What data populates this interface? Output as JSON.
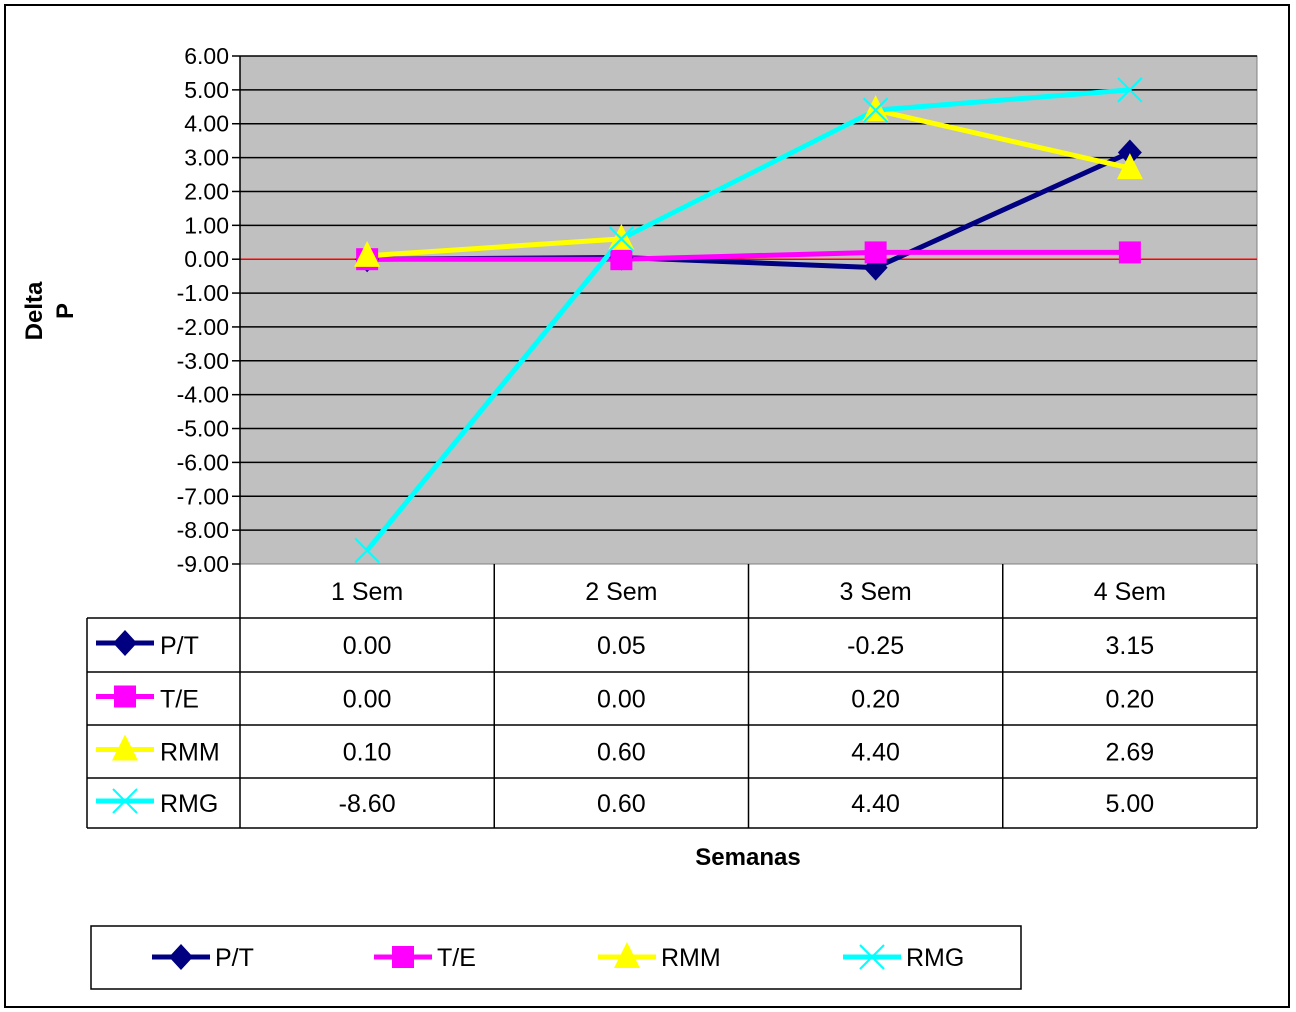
{
  "chart_data": {
    "type": "line",
    "title": "",
    "xlabel": "Semanas",
    "ylabel": "Delta P",
    "ylabel_lines": [
      "Delta",
      "P"
    ],
    "ylim": [
      -9,
      6
    ],
    "ytick_step": 1,
    "yticks": [
      "6.00",
      "5.00",
      "4.00",
      "3.00",
      "2.00",
      "1.00",
      "0.00",
      "-1.00",
      "-2.00",
      "-3.00",
      "-4.00",
      "-5.00",
      "-6.00",
      "-7.00",
      "-8.00",
      "-9.00"
    ],
    "categories": [
      "1 Sem",
      "2 Sem",
      "3 Sem",
      "4 Sem"
    ],
    "grid": true,
    "plot_background": "#c0c0c0",
    "zero_line_color": "#ff0000",
    "legend_position": "bottom",
    "data_table": true,
    "series": [
      {
        "name": "P/T",
        "values": [
          0.0,
          0.05,
          -0.25,
          3.15
        ],
        "labels": [
          "0.00",
          "0.05",
          "-0.25",
          "3.15"
        ],
        "color": "#000080",
        "marker": "diamond"
      },
      {
        "name": "T/E",
        "values": [
          0.0,
          0.0,
          0.2,
          0.2
        ],
        "labels": [
          "0.00",
          "0.00",
          "0.20",
          "0.20"
        ],
        "color": "#ff00ff",
        "marker": "square"
      },
      {
        "name": "RMM",
        "values": [
          0.1,
          0.6,
          4.4,
          2.69
        ],
        "labels": [
          "0.10",
          "0.60",
          "4.40",
          "2.69"
        ],
        "color": "#ffff00",
        "marker": "triangle"
      },
      {
        "name": "RMG",
        "values": [
          -8.6,
          0.6,
          4.4,
          5.0
        ],
        "labels": [
          "-8.60",
          "0.60",
          "4.40",
          "5.00"
        ],
        "color": "#00ffff",
        "marker": "x"
      }
    ]
  }
}
